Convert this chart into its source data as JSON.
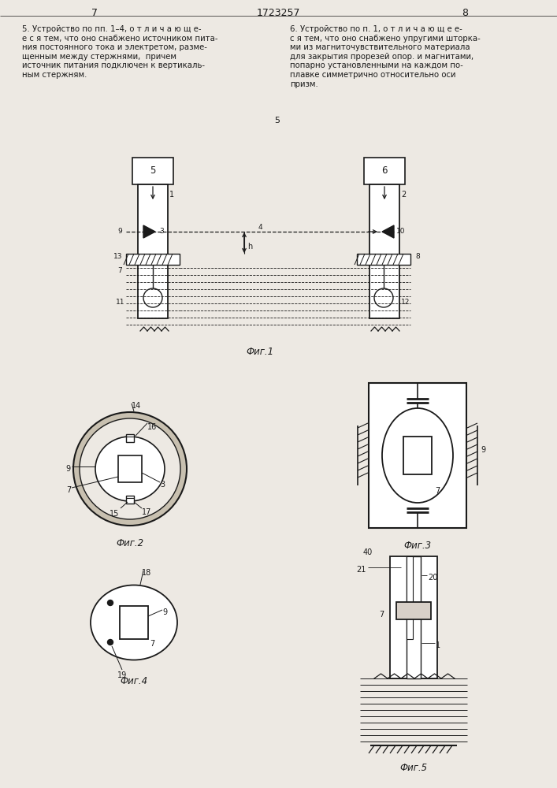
{
  "page_width": 7.07,
  "page_height": 10.0,
  "bg_color": "#ede9e3",
  "line_color": "#1a1a1a",
  "text_color": "#1a1a1a",
  "header_text": "1723257",
  "page_left": "7",
  "page_right": "8",
  "fig1_label": "Фиг.1",
  "fig2_label": "Фиг.2",
  "fig3_label": "Фиг.3",
  "fig4_label": "Фиг.4",
  "fig5_label": "Фиг.5"
}
